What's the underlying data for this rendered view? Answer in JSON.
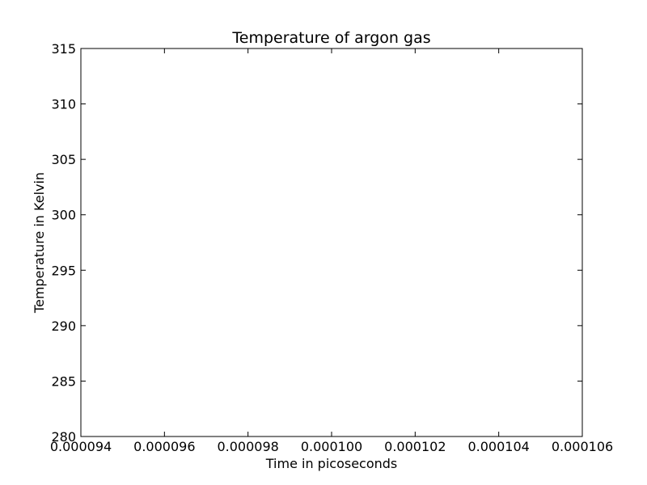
{
  "chart_data": {
    "type": "line",
    "title": "Temperature of argon gas",
    "xlabel": "Time in picoseconds",
    "ylabel": "Temperature in Kelvin",
    "xlim": [
      9.4e-05,
      0.000106
    ],
    "ylim": [
      280,
      315
    ],
    "x_ticks": [
      9.4e-05,
      9.6e-05,
      9.8e-05,
      0.0001,
      0.000102,
      0.000104,
      0.000106
    ],
    "x_tick_labels": [
      "0.000094",
      "0.000096",
      "0.000098",
      "0.000100",
      "0.000102",
      "0.000104",
      "0.000106"
    ],
    "y_ticks": [
      280,
      285,
      290,
      295,
      300,
      305,
      310,
      315
    ],
    "y_tick_labels": [
      "280",
      "285",
      "290",
      "295",
      "300",
      "305",
      "310",
      "315"
    ],
    "grid": false,
    "series": []
  }
}
